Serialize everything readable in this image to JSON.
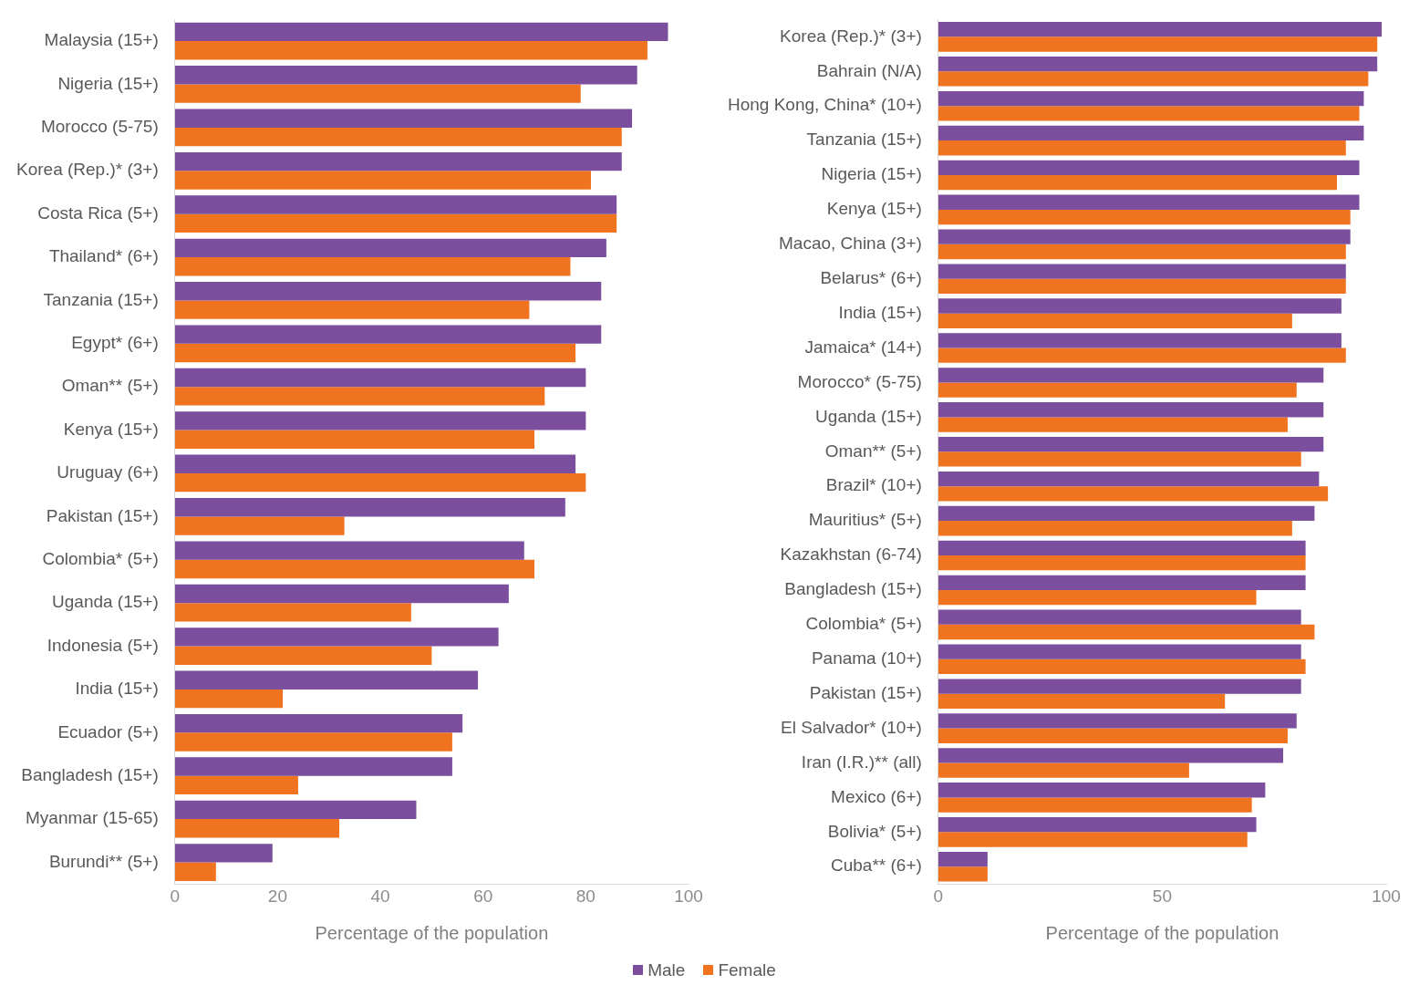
{
  "chart_data": [
    {
      "type": "bar",
      "orientation": "horizontal",
      "xlabel": "Percentage of the population",
      "categories": [
        "Malaysia (15+)",
        "Nigeria (15+)",
        "Morocco (5-75)",
        "Korea (Rep.)* (3+)",
        "Costa Rica (5+)",
        "Thailand* (6+)",
        "Tanzania (15+)",
        "Egypt* (6+)",
        "Oman** (5+)",
        "Kenya (15+)",
        "Uruguay (6+)",
        "Pakistan (15+)",
        "Colombia* (5+)",
        "Uganda (15+)",
        "Indonesia (5+)",
        "India (15+)",
        "Ecuador (5+)",
        "Bangladesh (15+)",
        "Myanmar (15-65)",
        "Burundi** (5+)"
      ],
      "series": [
        {
          "name": "Male",
          "color": "#7b4f9e",
          "values": [
            96,
            90,
            89,
            87,
            86,
            84,
            83,
            83,
            80,
            80,
            78,
            76,
            68,
            65,
            63,
            59,
            56,
            54,
            47,
            19
          ]
        },
        {
          "name": "Female",
          "color": "#f07320",
          "values": [
            92,
            79,
            87,
            81,
            86,
            77,
            69,
            78,
            72,
            70,
            80,
            33,
            70,
            46,
            50,
            21,
            54,
            24,
            32,
            8
          ]
        }
      ],
      "xlim": [
        0,
        100
      ],
      "xticks": [
        0,
        20,
        40,
        60,
        80,
        100
      ],
      "grid": false,
      "legend": "bottom"
    },
    {
      "type": "bar",
      "orientation": "horizontal",
      "xlabel": "Percentage of the population",
      "categories": [
        "Korea (Rep.)* (3+)",
        "Bahrain (N/A)",
        "Hong Kong, China* (10+)",
        "Tanzania (15+)",
        "Nigeria (15+)",
        "Kenya (15+)",
        "Macao, China (3+)",
        "Belarus* (6+)",
        "India (15+)",
        "Jamaica* (14+)",
        "Morocco* (5-75)",
        "Uganda (15+)",
        "Oman** (5+)",
        "Brazil* (10+)",
        "Mauritius* (5+)",
        "Kazakhstan (6-74)",
        "Bangladesh (15+)",
        "Colombia* (5+)",
        "Panama (10+)",
        "Pakistan (15+)",
        "El Salvador* (10+)",
        "Iran (I.R.)** (all)",
        "Mexico (6+)",
        "Bolivia* (5+)",
        "Cuba** (6+)"
      ],
      "series": [
        {
          "name": "Male",
          "color": "#7b4f9e",
          "values": [
            99,
            98,
            95,
            95,
            94,
            94,
            92,
            91,
            90,
            90,
            86,
            86,
            86,
            85,
            84,
            82,
            82,
            81,
            81,
            81,
            80,
            77,
            73,
            71,
            11
          ]
        },
        {
          "name": "Female",
          "color": "#f07320",
          "values": [
            98,
            96,
            94,
            91,
            89,
            92,
            91,
            91,
            79,
            91,
            80,
            78,
            81,
            87,
            79,
            82,
            71,
            84,
            82,
            64,
            78,
            56,
            70,
            69,
            11
          ]
        }
      ],
      "xlim": [
        0,
        100
      ],
      "xticks": [
        0,
        50,
        100
      ],
      "grid": false,
      "legend": "bottom"
    }
  ]
}
